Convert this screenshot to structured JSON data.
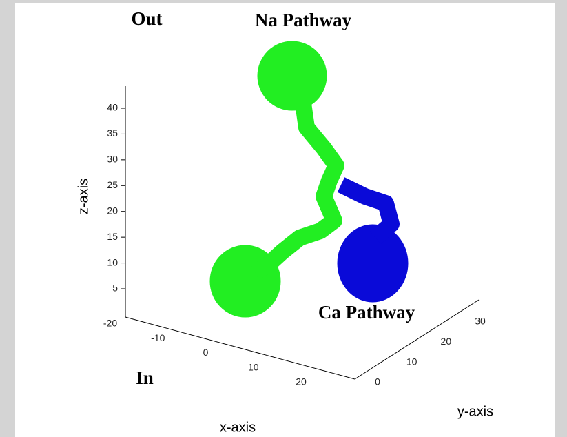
{
  "labels": {
    "out": "Out",
    "na_pathway": "Na Pathway",
    "ca_pathway": "Ca Pathway",
    "in": "In"
  },
  "axes": {
    "x": {
      "title": "x-axis",
      "ticks": [
        -20,
        -10,
        0,
        10,
        20
      ]
    },
    "y": {
      "title": "y-axis",
      "ticks": [
        0,
        10,
        20,
        30
      ]
    },
    "z": {
      "title": "z-axis",
      "ticks": [
        5,
        10,
        15,
        20,
        25,
        30,
        35,
        40
      ]
    }
  }
}
